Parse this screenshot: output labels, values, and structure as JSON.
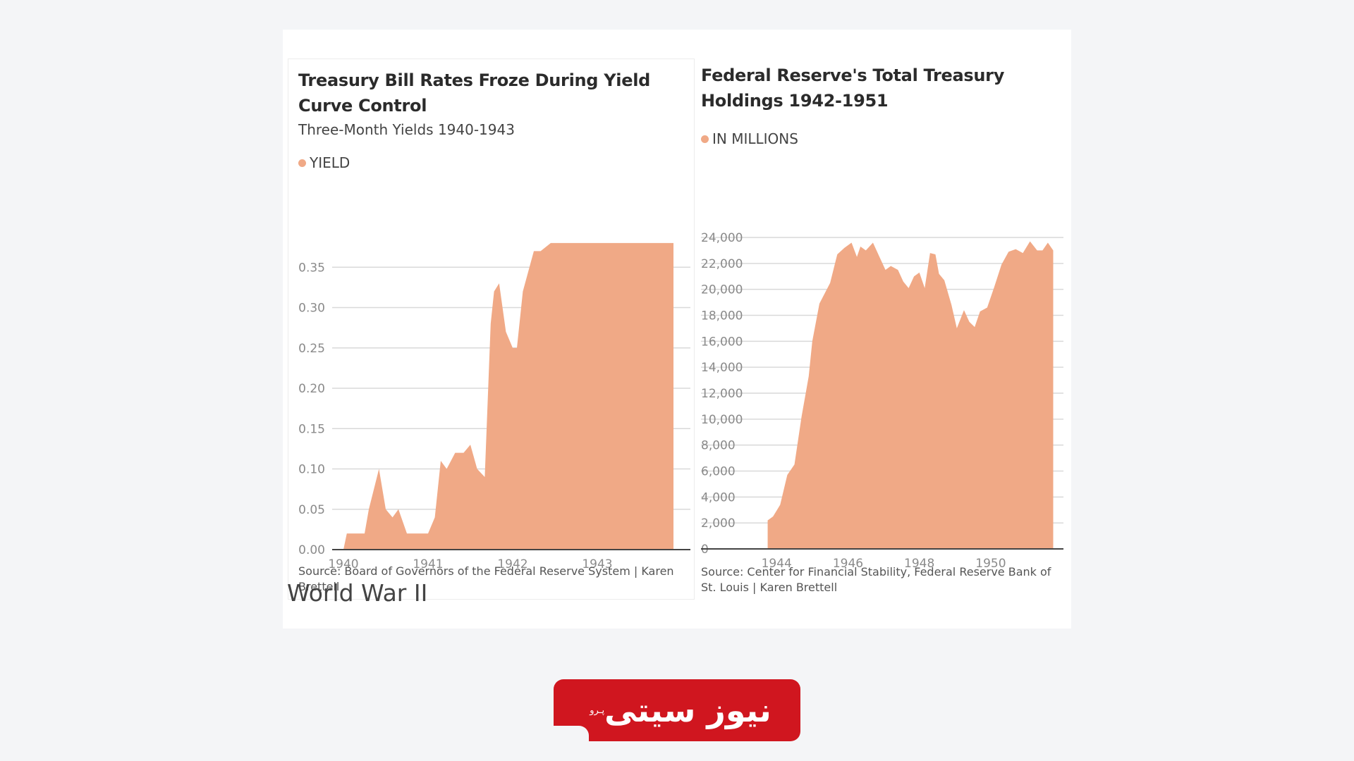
{
  "colors": {
    "area": "#f0a986",
    "grid": "#d9d9d9",
    "axis": "#444444",
    "logo_bg": "#d0161f"
  },
  "chart_data": [
    {
      "type": "area",
      "title": "Treasury Bill Rates Froze During Yield Curve Control",
      "subtitle": "Three-Month Yields 1940-1943",
      "legend": "YIELD",
      "source": "Source: Board of Governors of the Federal Reserve System  | Karen Brettell",
      "xlim": [
        1940.0,
        1944.0
      ],
      "ylim": [
        0,
        0.4
      ],
      "xticks": [
        1940,
        1941,
        1942,
        1943
      ],
      "xtick_labels": [
        "1940",
        "1941",
        "1942",
        "1943"
      ],
      "yticks": [
        0,
        0.05,
        0.1,
        0.15,
        0.2,
        0.25,
        0.3,
        0.35
      ],
      "ytick_labels": [
        "0.00",
        "0.05",
        "0.10",
        "0.15",
        "0.20",
        "0.25",
        "0.30",
        "0.35"
      ],
      "grid": true,
      "series": [
        {
          "x": [
            1940.0,
            1940.04,
            1940.25,
            1940.3,
            1940.42,
            1940.5,
            1940.58,
            1940.65,
            1940.75,
            1941.0,
            1941.08,
            1941.15,
            1941.22,
            1941.32,
            1941.42,
            1941.5,
            1941.58,
            1941.67,
            1941.74,
            1941.78,
            1941.84,
            1941.92,
            1942.0,
            1942.05,
            1942.12,
            1942.25,
            1942.33,
            1942.45,
            1942.58,
            1942.75,
            1943.0,
            1943.5,
            1943.9
          ],
          "y": [
            0.0,
            0.02,
            0.02,
            0.05,
            0.1,
            0.05,
            0.04,
            0.05,
            0.02,
            0.02,
            0.04,
            0.11,
            0.1,
            0.12,
            0.12,
            0.13,
            0.1,
            0.09,
            0.28,
            0.32,
            0.33,
            0.27,
            0.25,
            0.25,
            0.32,
            0.37,
            0.37,
            0.38,
            0.38,
            0.38,
            0.38,
            0.38,
            0.38
          ]
        }
      ]
    },
    {
      "type": "area",
      "title": "Federal Reserve's Total Treasury Holdings 1942-1951",
      "legend": "IN MILLIONS",
      "source": "Source: Center for Financial Stability, Federal Reserve Bank of St. Louis  | Karen Brettell",
      "xlim": [
        1942.0,
        1951.8
      ],
      "ylim": [
        0,
        24000
      ],
      "xticks": [
        1944,
        1946,
        1948,
        1950
      ],
      "xtick_labels": [
        "1944",
        "1946",
        "1948",
        "1950"
      ],
      "yticks": [
        0,
        2000,
        4000,
        6000,
        8000,
        10000,
        12000,
        14000,
        16000,
        18000,
        20000,
        22000,
        24000
      ],
      "ytick_labels": [
        "0",
        "2,000",
        "4,000",
        "6,000",
        "8,000",
        "10,000",
        "12,000",
        "14,000",
        "16,000",
        "18,000",
        "20,000",
        "22,000",
        "24,000"
      ],
      "grid": true,
      "series": [
        {
          "x": [
            1943.75,
            1943.9,
            1944.1,
            1944.3,
            1944.5,
            1944.7,
            1944.9,
            1945.0,
            1945.2,
            1945.5,
            1945.7,
            1945.9,
            1946.1,
            1946.25,
            1946.35,
            1946.5,
            1946.7,
            1946.9,
            1947.05,
            1947.2,
            1947.4,
            1947.55,
            1947.7,
            1947.85,
            1948.0,
            1948.15,
            1948.3,
            1948.45,
            1948.55,
            1948.7,
            1948.9,
            1949.05,
            1949.25,
            1949.4,
            1949.55,
            1949.7,
            1949.9,
            1950.1,
            1950.3,
            1950.5,
            1950.7,
            1950.9,
            1951.1,
            1951.3,
            1951.45,
            1951.6,
            1951.75
          ],
          "y": [
            2200,
            2500,
            3400,
            5700,
            6500,
            10200,
            13300,
            16000,
            18900,
            20500,
            22700,
            23200,
            23600,
            22500,
            23300,
            23000,
            23600,
            22400,
            21500,
            21800,
            21500,
            20600,
            20100,
            21000,
            21300,
            20100,
            22800,
            22700,
            21200,
            20700,
            18800,
            17000,
            18400,
            17500,
            17100,
            18300,
            18600,
            20200,
            21900,
            22900,
            23100,
            22800,
            23700,
            23000,
            23000,
            23600,
            23000
          ]
        }
      ]
    }
  ],
  "caption": "World War II",
  "logo": {
    "text": "نیوز سیتی",
    "small": "پـرو"
  }
}
